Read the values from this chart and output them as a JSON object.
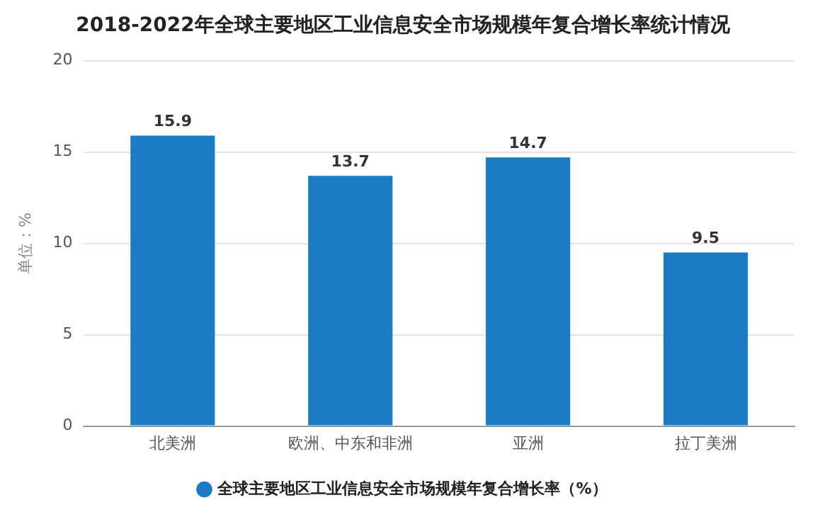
{
  "chart_data": {
    "type": "bar",
    "title": "2018-2022年全球主要地区工业信息安全市场规模年复合增长率统计情况",
    "ylabel": "单位：%",
    "categories": [
      "北美洲",
      "欧洲、中东和非洲",
      "亚洲",
      "拉丁美洲"
    ],
    "series": [
      {
        "name": "全球主要地区工业信息安全市场规模年复合增长率（%）",
        "color": "#1b7bc4",
        "values": [
          15.9,
          13.7,
          14.7,
          9.5
        ]
      }
    ],
    "ylim": [
      0,
      20
    ],
    "yticks": [
      0,
      5,
      10,
      15,
      20
    ],
    "grid": "y",
    "legend": "bottom",
    "data_labels": true
  }
}
